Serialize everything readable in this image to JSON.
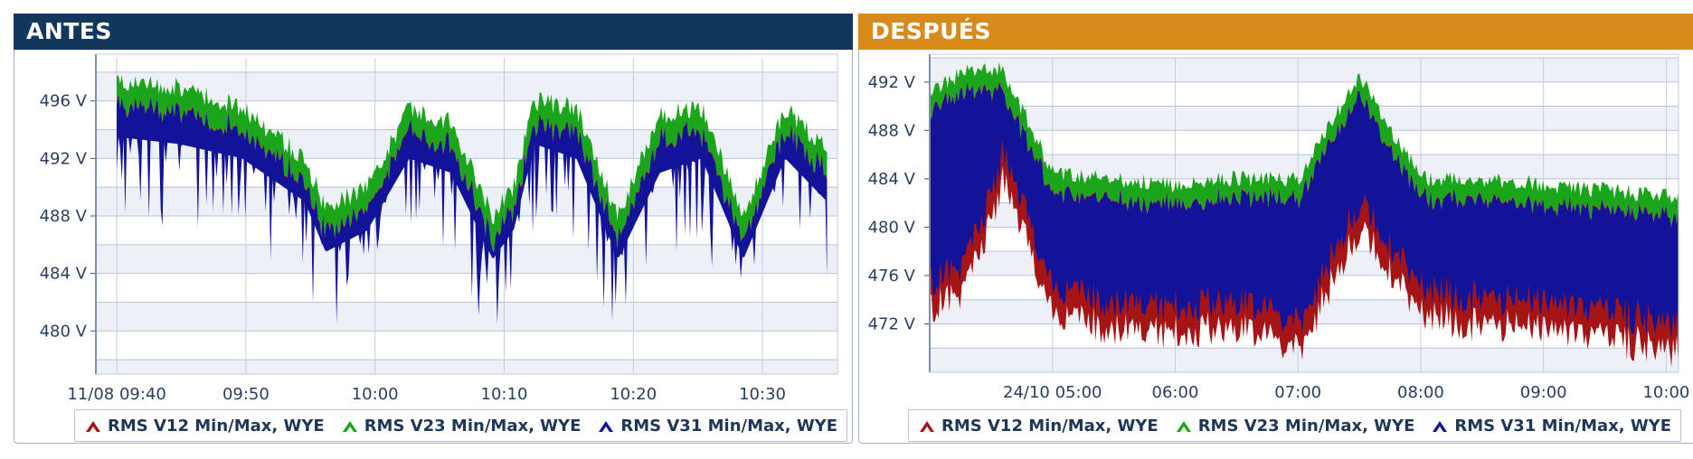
{
  "chart_data": [
    {
      "type": "line",
      "title": "ANTES",
      "header_color": "#12375c",
      "y_ticks": [
        480,
        484,
        488,
        492,
        496
      ],
      "y_unit": " V",
      "ylim": [
        477,
        499
      ],
      "x_ticks": [
        "11/08 09:40",
        "09:50",
        "10:00",
        "10:10",
        "10:20",
        "10:30"
      ],
      "xlim": [
        -1,
        34.5
      ],
      "x_tick_values": [
        0,
        10,
        20,
        30,
        40,
        50
      ],
      "x_minutes_span": [
        0,
        55
      ],
      "grid": true,
      "legend_position": "bottom",
      "series": [
        {
          "name": "RMS V12 Min/Max, WYE",
          "color": "#a51515",
          "x": [
            0,
            3,
            6,
            9,
            10,
            12,
            14,
            16,
            18,
            19,
            20,
            22,
            24,
            26,
            28,
            30,
            32,
            34
          ],
          "y": [
            494.5,
            494,
            493,
            490,
            486.5,
            488,
            493,
            492,
            486,
            488,
            494,
            493,
            486,
            492,
            493,
            486,
            493,
            490
          ]
        },
        {
          "name": "RMS V23 Min/Max, WYE",
          "color": "#1aa51a",
          "x": [
            0,
            3,
            6,
            9,
            10,
            12,
            14,
            16,
            18,
            19,
            20,
            22,
            24,
            26,
            28,
            30,
            32,
            34
          ],
          "y": [
            497.2,
            497,
            495.5,
            492,
            488.5,
            490,
            495.5,
            494.5,
            488,
            490,
            496,
            495.5,
            488,
            495,
            495.5,
            488,
            495.5,
            492.5
          ]
        },
        {
          "name": "RMS V31 Min/Max, WYE",
          "color": "#13139a",
          "x": [
            0,
            3,
            6,
            9,
            10,
            12,
            14,
            16,
            18,
            19,
            20,
            22,
            24,
            26,
            28,
            30,
            32,
            34
          ],
          "y": [
            488.5,
            484,
            485,
            483,
            479.5,
            483,
            486,
            481,
            479.5,
            484,
            486,
            481,
            483,
            484,
            481,
            479.5,
            484,
            484
          ]
        }
      ]
    },
    {
      "type": "line",
      "title": "DESPUÉS",
      "header_color": "#d68b1c",
      "y_ticks": [
        472,
        476,
        480,
        484,
        488,
        492
      ],
      "y_unit": " V",
      "ylim": [
        468,
        494
      ],
      "x_ticks": [
        "24/10 05:00",
        "06:00",
        "07:00",
        "08:00",
        "09:00",
        "10:00"
      ],
      "xlim": [
        4.0,
        10.1
      ],
      "x_tick_values": [
        5,
        6,
        7,
        8,
        9,
        10
      ],
      "grid": true,
      "legend_position": "bottom",
      "series": [
        {
          "name": "RMS V12 Min/Max, WYE",
          "color": "#a51515",
          "x": [
            4.0,
            4.3,
            4.6,
            5.0,
            5.4,
            6.0,
            6.5,
            7.0,
            7.5,
            8.0,
            8.5,
            9.0,
            9.5,
            10.1
          ],
          "y": [
            474.5,
            476,
            485,
            474,
            473,
            472.5,
            473,
            471,
            481,
            474,
            473,
            473,
            472,
            471
          ]
        },
        {
          "name": "RMS V23 Min/Max, WYE",
          "color": "#1aa51a",
          "x": [
            4.0,
            4.3,
            4.6,
            5.0,
            5.4,
            6.0,
            6.5,
            7.0,
            7.5,
            8.0,
            8.5,
            9.0,
            9.5,
            10.1
          ],
          "y": [
            491,
            493,
            493,
            484.5,
            484,
            483.5,
            484,
            484,
            492.5,
            484,
            484,
            483.5,
            483,
            482.5
          ]
        },
        {
          "name": "RMS V31 Min/Max, WYE",
          "color": "#13139a",
          "x": [
            4.0,
            4.3,
            4.6,
            5.0,
            5.4,
            6.0,
            6.5,
            7.0,
            7.5,
            8.0,
            8.5,
            9.0,
            9.5,
            10.1
          ],
          "y": [
            475.5,
            477,
            486,
            475,
            474,
            473.5,
            474,
            472,
            482,
            475,
            474,
            474,
            473,
            472
          ]
        }
      ]
    }
  ]
}
